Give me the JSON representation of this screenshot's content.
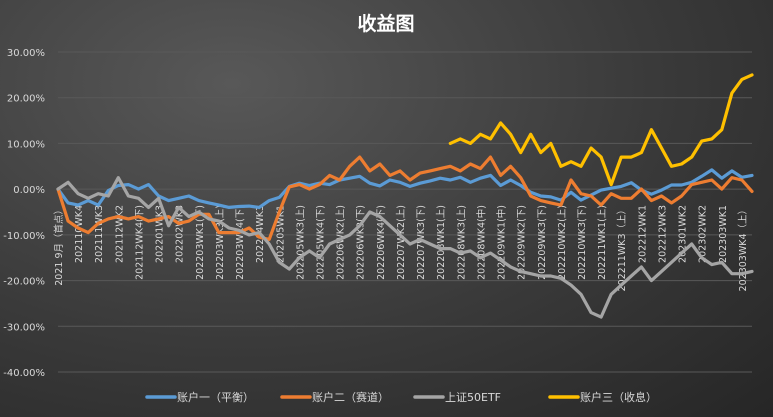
{
  "chart_data": {
    "type": "line",
    "title": "收益图",
    "xlabel": "",
    "ylabel": "",
    "ylim": [
      -40,
      30
    ],
    "y_ticks": [
      "30.00%",
      "20.00%",
      "10.00%",
      "0.00%",
      "-10.00%",
      "-20.00%",
      "-30.00%",
      "-40.00%"
    ],
    "y_tick_values": [
      30,
      20,
      10,
      0,
      -10,
      -20,
      -30,
      -40
    ],
    "grid": true,
    "legend_position": "bottom",
    "n_points": 70,
    "x_labels": [
      {
        "i": 0,
        "text": "2021 9月（首点）"
      },
      {
        "i": 2,
        "text": "202110WK4"
      },
      {
        "i": 4,
        "text": "202111WK3"
      },
      {
        "i": 6,
        "text": "202112WK2"
      },
      {
        "i": 8,
        "text": "202112WK4(下)"
      },
      {
        "i": 10,
        "text": "202201WK3"
      },
      {
        "i": 12,
        "text": "202202WK3"
      },
      {
        "i": 14,
        "text": "202203WK1(下)"
      },
      {
        "i": 16,
        "text": "202203WK3(上)"
      },
      {
        "i": 18,
        "text": "202203WK4(下)"
      },
      {
        "i": 20,
        "text": "202204WK3"
      },
      {
        "i": 22,
        "text": "202205WK1"
      },
      {
        "i": 24,
        "text": "202205WK3(上)"
      },
      {
        "i": 26,
        "text": "202205WK4(下)"
      },
      {
        "i": 28,
        "text": "202206WK2(上)"
      },
      {
        "i": 30,
        "text": "202206WK3(下)"
      },
      {
        "i": 32,
        "text": "202206WK4(下)"
      },
      {
        "i": 34,
        "text": "202207WK2(上)"
      },
      {
        "i": 36,
        "text": "202207WK3(下)"
      },
      {
        "i": 38,
        "text": "202208WK1(上)"
      },
      {
        "i": 40,
        "text": "202208WK3(上)"
      },
      {
        "i": 42,
        "text": "202208WK4(中)"
      },
      {
        "i": 44,
        "text": "202209WK1(中)"
      },
      {
        "i": 46,
        "text": "202209WK2(下)"
      },
      {
        "i": 48,
        "text": "202209WK3(下)"
      },
      {
        "i": 50,
        "text": "202210WK2(上)"
      },
      {
        "i": 52,
        "text": "202210WK3(下)"
      },
      {
        "i": 54,
        "text": "202211WK1(上)"
      },
      {
        "i": 56,
        "text": "202211WK3（上）"
      },
      {
        "i": 58,
        "text": "202212WK1"
      },
      {
        "i": 60,
        "text": "202212WK3"
      },
      {
        "i": 62,
        "text": "202301WK2"
      },
      {
        "i": 64,
        "text": "202302WK2"
      },
      {
        "i": 66,
        "text": "202303WK1"
      },
      {
        "i": 68,
        "text": "202303WK4（上）"
      }
    ],
    "series": [
      {
        "name": "账户一（平衡）",
        "color": "#5b9bd5",
        "start": 0,
        "values": [
          0,
          -3,
          -3.5,
          -2.5,
          -3.5,
          -0.3,
          0.8,
          1,
          0,
          1,
          -1.5,
          -2.5,
          -2,
          -1.5,
          -2.5,
          -3,
          -3.5,
          -4,
          -3.8,
          -3.7,
          -4,
          -2.5,
          -1.8,
          0.6,
          1.3,
          0.8,
          1.3,
          1,
          2,
          2.4,
          2.8,
          1.3,
          0.7,
          2,
          1.5,
          0.6,
          1.3,
          1.8,
          2.4,
          2,
          2.6,
          1.5,
          2.4,
          3,
          0.8,
          2,
          0.8,
          -0.7,
          -1.5,
          -1.7,
          -2.4,
          -0.7,
          -2.4,
          -1.3,
          -0.2,
          0.2,
          0.6,
          1.4,
          -0.2,
          -1.1,
          -0.2,
          0.9,
          0.9,
          1.5,
          2.8,
          4.2,
          2.4,
          4,
          2.6,
          3
        ]
      },
      {
        "name": "账户二（赛道）",
        "color": "#ed7d31",
        "start": 0,
        "values": [
          0,
          -7,
          -8.5,
          -9.5,
          -7.5,
          -6.5,
          -6,
          -6.5,
          -6,
          -7,
          -6.5,
          -6,
          -7.5,
          -7,
          -5.5,
          -5.5,
          -9.5,
          -9.5,
          -9.5,
          -8.5,
          -10.5,
          -11,
          -5,
          0.5,
          1,
          0,
          1,
          3,
          2,
          5,
          7,
          4,
          5.5,
          3,
          4,
          2,
          3.5,
          4,
          4.5,
          5,
          4,
          5.5,
          4.5,
          7,
          3,
          5,
          2.5,
          -1.5,
          -2.5,
          -3,
          -3.5,
          2,
          -1,
          -1.5,
          -3.5,
          -1,
          -2,
          -2,
          0,
          -2.5,
          -1.5,
          -3,
          -1.5,
          1,
          1.5,
          2,
          0,
          2.5,
          2,
          -0.5
        ]
      },
      {
        "name": "上证50ETF",
        "color": "#a5a5a5",
        "start": 0,
        "values": [
          0,
          1.5,
          -1,
          -2,
          -1,
          -1.5,
          2.5,
          -1.5,
          -2,
          -4,
          -2,
          -8,
          -4,
          -6,
          -5,
          -6.5,
          -7,
          -8.5,
          -9,
          -10,
          -9.5,
          -12,
          -16,
          -17.5,
          -15,
          -13.5,
          -15,
          -12,
          -11,
          -10,
          -8,
          -5,
          -6,
          -8,
          -10,
          -12,
          -11,
          -12,
          -13,
          -13,
          -14,
          -13.5,
          -15,
          -14,
          -15.5,
          -17,
          -18,
          -18.5,
          -19,
          -19,
          -19.5,
          -21,
          -23,
          -27,
          -28,
          -23,
          -21,
          -19,
          -17,
          -20,
          -18,
          -16,
          -14,
          -12,
          -15,
          -16.5,
          -16,
          -18.5,
          -18.5,
          -18
        ]
      },
      {
        "name": "账户三（收息）",
        "color": "#ffc000",
        "start": 39,
        "values": [
          10,
          11,
          10,
          12,
          11,
          14.5,
          12,
          8,
          12,
          8,
          10,
          5,
          6,
          5,
          9,
          7,
          1,
          7,
          7,
          8,
          13,
          9,
          5,
          5.5,
          7,
          10.5,
          11,
          13,
          21,
          24,
          25
        ]
      }
    ]
  }
}
